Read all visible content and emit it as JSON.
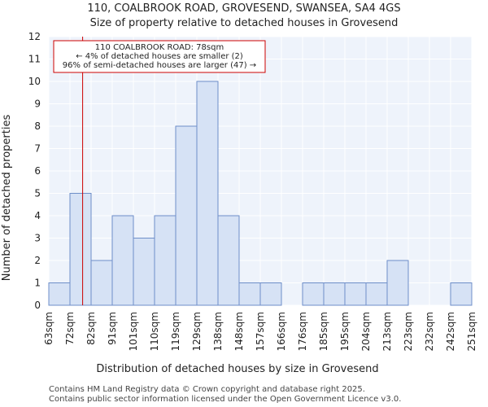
{
  "chart_data": {
    "type": "bar",
    "title": "110, COALBROOK ROAD, GROVESEND, SWANSEA, SA4 4GS",
    "subtitle": "Size of property relative to detached houses in Grovesend",
    "xlabel": "Distribution of detached houses by size in Grovesend",
    "ylabel": "Number of detached properties",
    "bin_edges": [
      "63sqm",
      "72sqm",
      "82sqm",
      "91sqm",
      "101sqm",
      "110sqm",
      "119sqm",
      "129sqm",
      "138sqm",
      "148sqm",
      "157sqm",
      "166sqm",
      "176sqm",
      "185sqm",
      "195sqm",
      "204sqm",
      "213sqm",
      "223sqm",
      "232sqm",
      "242sqm",
      "251sqm"
    ],
    "values": [
      1,
      5,
      2,
      4,
      3,
      4,
      8,
      10,
      4,
      1,
      1,
      0,
      1,
      1,
      1,
      1,
      2,
      0,
      0,
      1
    ],
    "ylim": [
      0,
      12
    ],
    "yticks": [
      "0",
      "1",
      "2",
      "3",
      "4",
      "5",
      "6",
      "7",
      "8",
      "9",
      "10",
      "11",
      "12"
    ],
    "grid": true,
    "bar_color": "#d6e2f5",
    "bar_edge_color": "#6f8fc9",
    "plot_bg": "#eef3fb",
    "marker": {
      "value_sqm": 78,
      "color": "#cc0000",
      "label_lines": [
        "110 COALBROOK ROAD: 78sqm",
        "← 4% of detached houses are smaller (2)",
        "96% of semi-detached houses are larger (47) →"
      ]
    }
  },
  "footer": {
    "line1": "Contains HM Land Registry data © Crown copyright and database right 2025.",
    "line2": "Contains public sector information licensed under the Open Government Licence v3.0."
  }
}
